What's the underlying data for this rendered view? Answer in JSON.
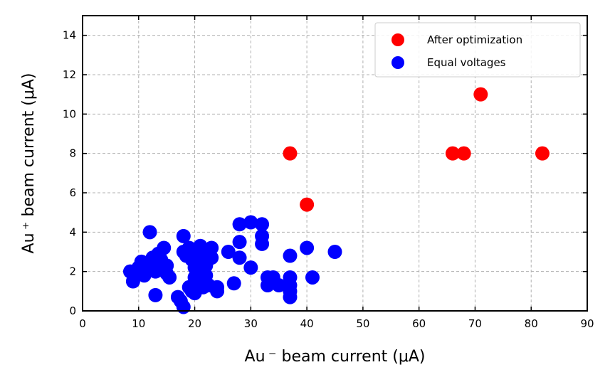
{
  "chart_data": {
    "type": "scatter",
    "title": "",
    "xlabel": "Au ⁻ beam current (μA)",
    "ylabel": "Au ⁺ beam current (μA)",
    "xlim": [
      0,
      90
    ],
    "ylim": [
      0,
      15
    ],
    "xticks": [
      0,
      10,
      20,
      30,
      40,
      50,
      60,
      70,
      80,
      90
    ],
    "yticks": [
      0,
      2,
      4,
      6,
      8,
      10,
      12,
      14
    ],
    "grid": true,
    "legend_position": "top-right",
    "series": [
      {
        "name": "After optimization",
        "color": "#ff0000",
        "x": [
          37,
          40,
          66,
          68,
          71,
          82
        ],
        "y": [
          8,
          5.4,
          8,
          8,
          11,
          8
        ]
      },
      {
        "name": "Equal voltages",
        "color": "#0000ff",
        "x": [
          8.5,
          9,
          9.5,
          10,
          10.5,
          11,
          11.5,
          12,
          12,
          12.5,
          13,
          13,
          13.5,
          14,
          14,
          14.5,
          15,
          15,
          15.5,
          17,
          17.5,
          18,
          18,
          18,
          18.5,
          19,
          19,
          19.5,
          19.5,
          20,
          20,
          20,
          20.5,
          20.5,
          21,
          21,
          21,
          21.5,
          21.5,
          22,
          22,
          22,
          22.5,
          22.5,
          23,
          23,
          24,
          24,
          26,
          27,
          28,
          28,
          28,
          30,
          30,
          32,
          32,
          32,
          33,
          33,
          34,
          35,
          37,
          37,
          37,
          37,
          37,
          40,
          41,
          45
        ],
        "y": [
          2,
          1.5,
          1.9,
          2.2,
          2.5,
          1.8,
          2.1,
          4,
          2.3,
          2.7,
          0.8,
          2.0,
          2.9,
          2.6,
          2.2,
          3.2,
          2.3,
          1.9,
          1.7,
          0.7,
          0.5,
          3.8,
          3.0,
          0.2,
          2.8,
          1.2,
          3.2,
          2.6,
          1.0,
          2.2,
          1.7,
          0.9,
          3.0,
          2.5,
          3.3,
          2.0,
          1.5,
          2.7,
          1.2,
          2.9,
          2.3,
          1.8,
          3.0,
          1.3,
          3.2,
          2.7,
          1.2,
          1.0,
          3.0,
          1.4,
          4.4,
          3.5,
          2.7,
          4.5,
          2.2,
          4.4,
          3.8,
          3.4,
          1.7,
          1.3,
          1.7,
          1.3,
          2.8,
          1.7,
          1.3,
          1.0,
          0.7,
          3.2,
          1.7,
          3.0
        ]
      }
    ]
  }
}
